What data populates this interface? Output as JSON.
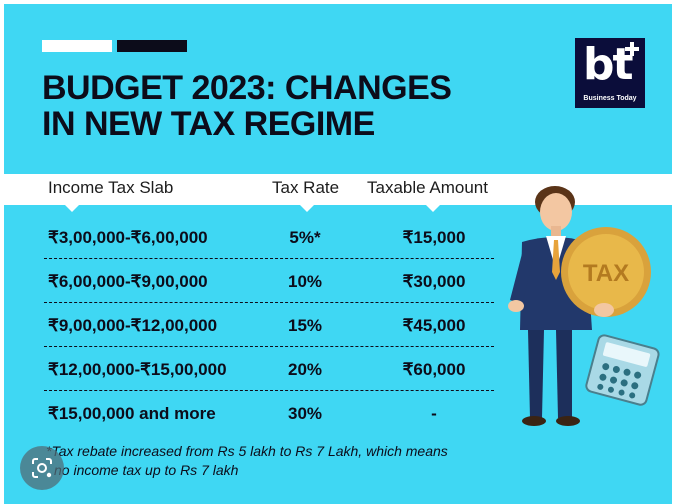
{
  "header": {
    "title_line1": "BUDGET 2023: CHANGES",
    "title_line2": "IN NEW TAX REGIME"
  },
  "logo": {
    "mark": "bt",
    "name": "Business Today"
  },
  "table": {
    "headers": [
      "Income Tax Slab",
      "Tax Rate",
      "Taxable Amount"
    ],
    "rows": [
      {
        "slab": "₹3,00,000-₹6,00,000",
        "rate": "5%*",
        "amount": "₹15,000"
      },
      {
        "slab": "₹6,00,000-₹9,00,000",
        "rate": "10%",
        "amount": "₹30,000"
      },
      {
        "slab": "₹9,00,000-₹12,00,000",
        "rate": "15%",
        "amount": "₹45,000"
      },
      {
        "slab": "₹12,00,000-₹15,00,000",
        "rate": "20%",
        "amount": "₹60,000"
      },
      {
        "slab": "₹15,00,000 and more",
        "rate": "30%",
        "amount": "-"
      }
    ]
  },
  "footnote": {
    "line1": "*Tax rebate increased from Rs 5 lakh to Rs 7 Lakh, which means",
    "line2": "no income tax up to Rs 7 lakh"
  },
  "illustration": {
    "coin_label": "TAX"
  },
  "colors": {
    "background": "#3fd7f3",
    "text": "#0c0c1a",
    "logo_bg": "#0b0d3a",
    "coin": "#e8b84a"
  },
  "icons": [
    "lens-search-icon",
    "calculator-icon",
    "businessman-illustration"
  ]
}
